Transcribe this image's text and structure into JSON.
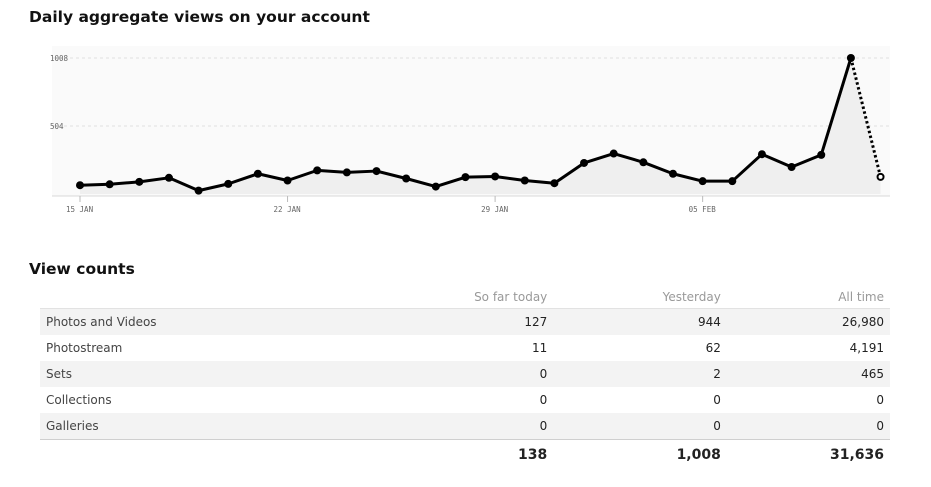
{
  "page": {
    "chart_heading": "Daily aggregate views on your account",
    "table_heading": "View counts"
  },
  "chart_data": {
    "type": "line",
    "ylim": [
      0,
      1008
    ],
    "yticks": [
      {
        "value": 504,
        "label": "504"
      },
      {
        "value": 1008,
        "label": "1008"
      }
    ],
    "xticks": [
      {
        "index": 0,
        "label": "15 JAN"
      },
      {
        "index": 7,
        "label": "22 JAN"
      },
      {
        "index": 14,
        "label": "29 JAN"
      },
      {
        "index": 21,
        "label": "05 FEB"
      }
    ],
    "grid": true,
    "series": [
      {
        "values": [
          65,
          72,
          90,
          120,
          25,
          75,
          150,
          100,
          175,
          160,
          170,
          115,
          55,
          125,
          130,
          100,
          80,
          230,
          300,
          235,
          150,
          95,
          95,
          295,
          200,
          290,
          1008,
          127
        ],
        "partial_last_point": true
      }
    ]
  },
  "table": {
    "columns": [
      "",
      "So far today",
      "Yesterday",
      "All time"
    ],
    "rows": [
      {
        "label": "Photos and Videos",
        "today": "127",
        "yesterday": "944",
        "all_time": "26,980"
      },
      {
        "label": "Photostream",
        "today": "11",
        "yesterday": "62",
        "all_time": "4,191"
      },
      {
        "label": "Sets",
        "today": "0",
        "yesterday": "2",
        "all_time": "465"
      },
      {
        "label": "Collections",
        "today": "0",
        "yesterday": "0",
        "all_time": "0"
      },
      {
        "label": "Galleries",
        "today": "0",
        "yesterday": "0",
        "all_time": "0"
      }
    ],
    "totals": {
      "today": "138",
      "yesterday": "1,008",
      "all_time": "31,636"
    }
  }
}
